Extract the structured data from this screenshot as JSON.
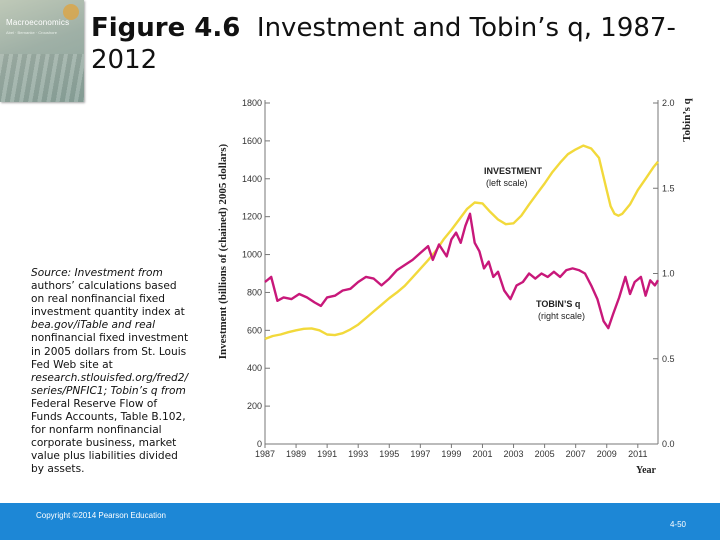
{
  "book": {
    "cover_title": "Macroeconomics",
    "cover_author": "Abel · Bernanke · Croushore"
  },
  "slide": {
    "fig_label": "Figure 4.6",
    "fig_title": "Investment and Tobin’s q, 1987-2012"
  },
  "source_note": {
    "lines": [
      {
        "text": "Source: Investment from",
        "italic": true
      },
      {
        "text": "authors’ calculations based",
        "italic": false
      },
      {
        "text": "on real nonfinancial fixed",
        "italic": false
      },
      {
        "text": "investment quantity index at",
        "italic": false
      },
      {
        "text": "bea.gov/iTable and real",
        "italic": true
      },
      {
        "text": "nonfinancial fixed investment",
        "italic": false
      },
      {
        "text": "in 2005 dollars from St. Louis",
        "italic": false
      },
      {
        "text": "Fed Web site at",
        "italic": false
      },
      {
        "text": "research.stlouisfed.org/fred2/",
        "italic": true
      },
      {
        "text": "series/PNFIC1; Tobin’s q from",
        "italic": true
      },
      {
        "text": "Federal Reserve Flow of",
        "italic": false
      },
      {
        "text": "Funds Accounts, Table B.102,",
        "italic": false
      },
      {
        "text": "for nonfarm nonfinancial",
        "italic": false
      },
      {
        "text": "corporate business, market",
        "italic": false
      },
      {
        "text": "value plus liabilities divided",
        "italic": false
      },
      {
        "text": "by assets.",
        "italic": false
      }
    ]
  },
  "footer": {
    "copyright": "Copyright ©2014 Pearson Education",
    "page": "4-50"
  },
  "chart_data": {
    "type": "line",
    "title": "Investment and Tobin’s q, 1987-2012",
    "xlabel": "Year",
    "ylabel_left": "Investment (billions of (chained) 2005 dollars)",
    "ylabel_right": "Tobin’s q",
    "xlim": [
      1987,
      2012.3
    ],
    "ylim_left": [
      0,
      1800
    ],
    "ylim_right": [
      0,
      2.0
    ],
    "x_ticks": [
      1987,
      1989,
      1991,
      1993,
      1995,
      1997,
      1999,
      2001,
      2003,
      2005,
      2007,
      2009,
      2011
    ],
    "y_ticks_left": [
      0,
      200,
      400,
      600,
      800,
      1000,
      1200,
      1400,
      1600,
      1800
    ],
    "y_ticks_right": [
      "0.0",
      "0.5",
      "1.0",
      "1.5",
      "2.0"
    ],
    "colors": {
      "investment": "#f2d93b",
      "tobins_q": "#c8187a"
    },
    "grid": false,
    "series": [
      {
        "name": "INVESTMENT",
        "sublabel": "(left scale)",
        "axis": "left",
        "color": "#f2d93b",
        "points": [
          [
            1987.0,
            555
          ],
          [
            1987.5,
            570
          ],
          [
            1988.0,
            578
          ],
          [
            1988.5,
            590
          ],
          [
            1989.0,
            600
          ],
          [
            1989.5,
            608
          ],
          [
            1990.0,
            610
          ],
          [
            1990.5,
            600
          ],
          [
            1991.0,
            578
          ],
          [
            1991.5,
            575
          ],
          [
            1992.0,
            585
          ],
          [
            1992.5,
            605
          ],
          [
            1993.0,
            630
          ],
          [
            1993.5,
            665
          ],
          [
            1994.0,
            700
          ],
          [
            1994.5,
            735
          ],
          [
            1995.0,
            770
          ],
          [
            1995.5,
            800
          ],
          [
            1996.0,
            835
          ],
          [
            1996.5,
            880
          ],
          [
            1997.0,
            925
          ],
          [
            1997.5,
            970
          ],
          [
            1998.0,
            1020
          ],
          [
            1998.5,
            1080
          ],
          [
            1999.0,
            1130
          ],
          [
            1999.5,
            1185
          ],
          [
            2000.0,
            1240
          ],
          [
            2000.5,
            1275
          ],
          [
            2001.0,
            1270
          ],
          [
            2001.5,
            1225
          ],
          [
            2002.0,
            1185
          ],
          [
            2002.5,
            1160
          ],
          [
            2003.0,
            1165
          ],
          [
            2003.5,
            1205
          ],
          [
            2004.0,
            1265
          ],
          [
            2004.5,
            1320
          ],
          [
            2005.0,
            1375
          ],
          [
            2005.5,
            1435
          ],
          [
            2006.0,
            1485
          ],
          [
            2006.5,
            1530
          ],
          [
            2007.0,
            1555
          ],
          [
            2007.5,
            1575
          ],
          [
            2008.0,
            1560
          ],
          [
            2008.5,
            1510
          ],
          [
            2009.0,
            1340
          ],
          [
            2009.25,
            1255
          ],
          [
            2009.5,
            1215
          ],
          [
            2009.75,
            1205
          ],
          [
            2010.0,
            1215
          ],
          [
            2010.5,
            1265
          ],
          [
            2011.0,
            1340
          ],
          [
            2011.5,
            1400
          ],
          [
            2012.0,
            1460
          ],
          [
            2012.3,
            1490
          ]
        ]
      },
      {
        "name": "TOBIN’S q",
        "sublabel": "(right scale)",
        "axis": "right",
        "color": "#c8187a",
        "points": [
          [
            1987.0,
            0.95
          ],
          [
            1987.4,
            0.98
          ],
          [
            1987.8,
            0.84
          ],
          [
            1988.2,
            0.86
          ],
          [
            1988.7,
            0.85
          ],
          [
            1989.2,
            0.88
          ],
          [
            1989.7,
            0.86
          ],
          [
            1990.2,
            0.83
          ],
          [
            1990.6,
            0.81
          ],
          [
            1991.0,
            0.86
          ],
          [
            1991.5,
            0.87
          ],
          [
            1992.0,
            0.9
          ],
          [
            1992.5,
            0.91
          ],
          [
            1993.0,
            0.95
          ],
          [
            1993.5,
            0.98
          ],
          [
            1994.0,
            0.97
          ],
          [
            1994.5,
            0.93
          ],
          [
            1995.0,
            0.97
          ],
          [
            1995.5,
            1.02
          ],
          [
            1996.0,
            1.05
          ],
          [
            1996.5,
            1.08
          ],
          [
            1997.0,
            1.12
          ],
          [
            1997.5,
            1.16
          ],
          [
            1997.8,
            1.08
          ],
          [
            1998.2,
            1.17
          ],
          [
            1998.7,
            1.1
          ],
          [
            1999.0,
            1.2
          ],
          [
            1999.3,
            1.24
          ],
          [
            1999.6,
            1.18
          ],
          [
            1999.9,
            1.28
          ],
          [
            2000.2,
            1.35
          ],
          [
            2000.5,
            1.18
          ],
          [
            2000.8,
            1.13
          ],
          [
            2001.1,
            1.03
          ],
          [
            2001.4,
            1.07
          ],
          [
            2001.7,
            0.98
          ],
          [
            2002.0,
            1.01
          ],
          [
            2002.4,
            0.9
          ],
          [
            2002.8,
            0.85
          ],
          [
            2003.2,
            0.93
          ],
          [
            2003.6,
            0.95
          ],
          [
            2004.0,
            1.0
          ],
          [
            2004.4,
            0.97
          ],
          [
            2004.8,
            1.0
          ],
          [
            2005.2,
            0.98
          ],
          [
            2005.6,
            1.01
          ],
          [
            2006.0,
            0.98
          ],
          [
            2006.4,
            1.02
          ],
          [
            2006.8,
            1.03
          ],
          [
            2007.2,
            1.02
          ],
          [
            2007.6,
            1.0
          ],
          [
            2008.0,
            0.93
          ],
          [
            2008.4,
            0.85
          ],
          [
            2008.8,
            0.72
          ],
          [
            2009.1,
            0.68
          ],
          [
            2009.4,
            0.76
          ],
          [
            2009.8,
            0.86
          ],
          [
            2010.2,
            0.98
          ],
          [
            2010.5,
            0.88
          ],
          [
            2010.8,
            0.95
          ],
          [
            2011.2,
            0.98
          ],
          [
            2011.5,
            0.87
          ],
          [
            2011.8,
            0.96
          ],
          [
            2012.1,
            0.93
          ],
          [
            2012.3,
            0.96
          ]
        ]
      }
    ]
  }
}
